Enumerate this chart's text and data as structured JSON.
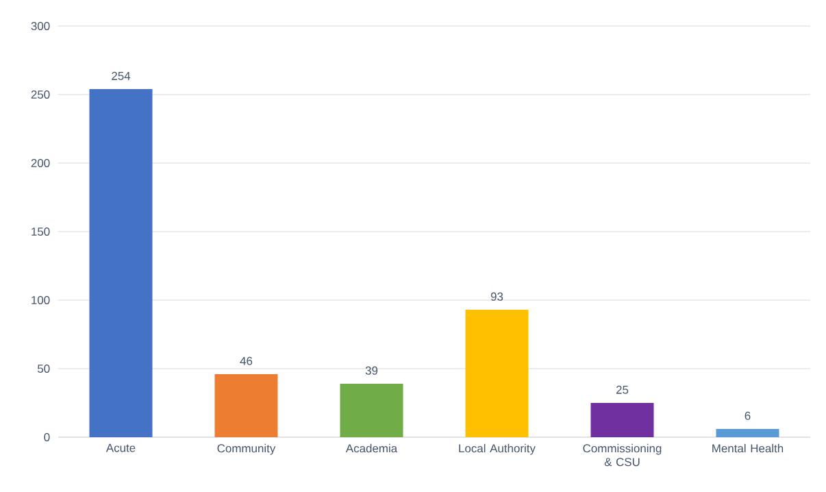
{
  "chart_data": {
    "type": "bar",
    "categories": [
      "Acute",
      "Community",
      "Academia",
      "Local Authority",
      "Commissioning & CSU",
      "Mental Health"
    ],
    "values": [
      254,
      46,
      39,
      93,
      25,
      6
    ],
    "colors": [
      "#4472c4",
      "#ed7d31",
      "#70ad47",
      "#ffc000",
      "#7030a0",
      "#5b9bd5"
    ],
    "ylim": [
      0,
      300
    ],
    "yticks": [
      0,
      50,
      100,
      150,
      200,
      250,
      300
    ],
    "grid": "y",
    "data_labels": true
  }
}
